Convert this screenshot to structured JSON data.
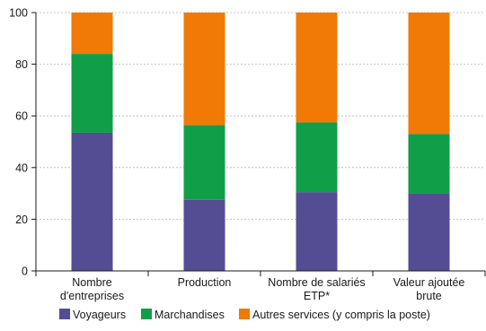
{
  "chart_data": {
    "type": "bar",
    "stacked": true,
    "categories": [
      [
        "Nombre",
        "d'entreprises"
      ],
      [
        "Production"
      ],
      [
        "Nombre de salariés",
        "ETP*"
      ],
      [
        "Valeur ajoutée",
        "brute"
      ]
    ],
    "series": [
      {
        "name": "Voyageurs",
        "color": "#544d94",
        "values": [
          53.5,
          27.5,
          30.5,
          30.0
        ]
      },
      {
        "name": "Marchandises",
        "color": "#119e49",
        "values": [
          30.5,
          29.0,
          27.0,
          23.0
        ]
      },
      {
        "name": "Autres services (y compris la poste)",
        "color": "#f07a05",
        "values": [
          16.0,
          43.5,
          42.5,
          47.0
        ]
      }
    ],
    "ylim": [
      0,
      100
    ],
    "yticks": [
      0,
      20,
      40,
      60,
      80,
      100
    ],
    "grid": "horizontal-dashed",
    "legend_position": "bottom",
    "title": "",
    "xlabel": "",
    "ylabel": ""
  }
}
